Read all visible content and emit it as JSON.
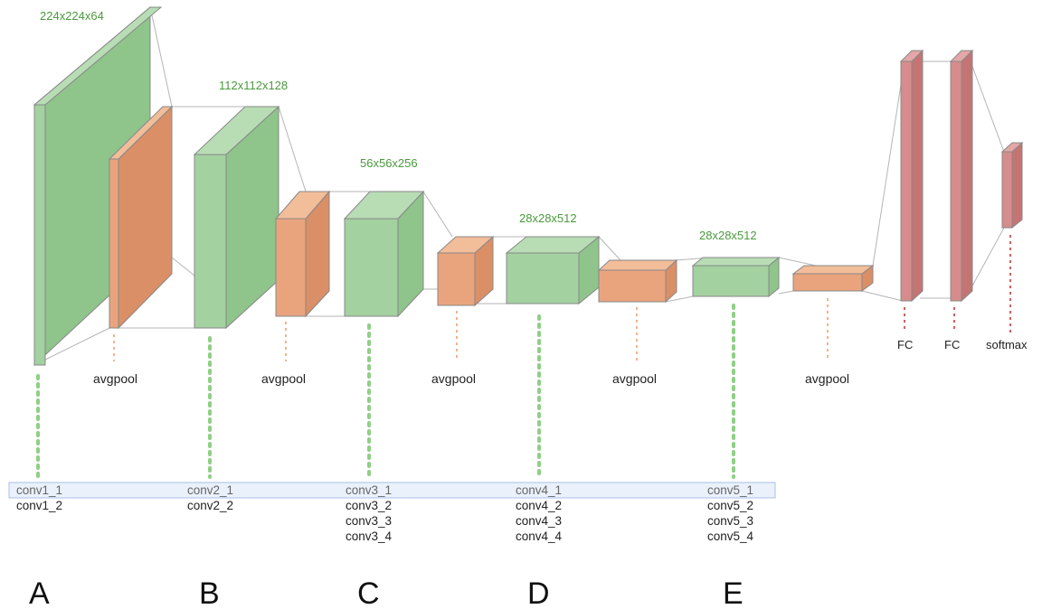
{
  "dimension_labels": [
    "224x224x64",
    "112x112x128",
    "56x56x256",
    "28x28x512",
    "28x28x512"
  ],
  "pool_label": "avgpool",
  "fc_labels": [
    "FC",
    "FC",
    "softmax"
  ],
  "conv_groups": [
    {
      "letter": "A",
      "layers": [
        "conv1_1",
        "conv1_2"
      ]
    },
    {
      "letter": "B",
      "layers": [
        "conv2_1",
        "conv2_2"
      ]
    },
    {
      "letter": "C",
      "layers": [
        "conv3_1",
        "conv3_2",
        "conv3_3",
        "conv3_4"
      ]
    },
    {
      "letter": "D",
      "layers": [
        "conv4_1",
        "conv4_2",
        "conv4_3",
        "conv4_4"
      ]
    },
    {
      "letter": "E",
      "layers": [
        "conv5_1",
        "conv5_2",
        "conv5_3",
        "conv5_4"
      ]
    }
  ],
  "colors": {
    "conv_block": "#a3d1a0",
    "pool_block": "#e9a47d",
    "fc_block": "#d68c8c",
    "dimension_text": "#4a9a3c",
    "highlight_row": "#eaf1fb"
  }
}
